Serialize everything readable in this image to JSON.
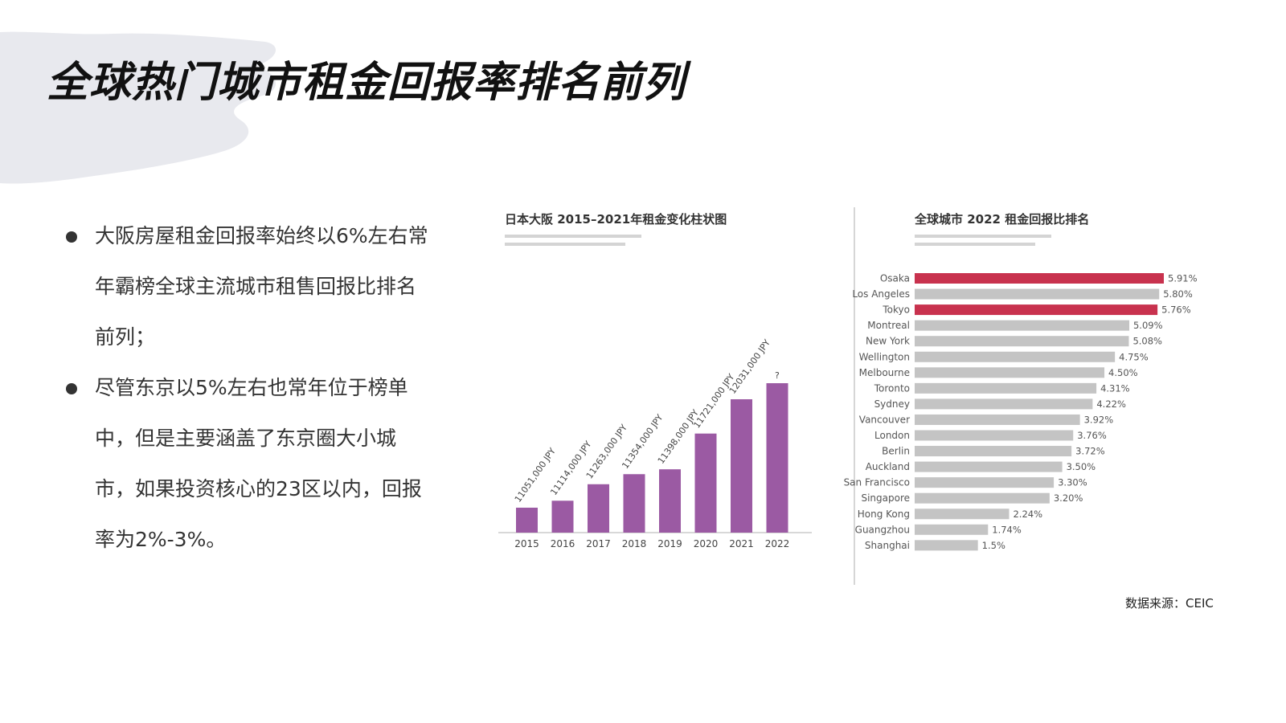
{
  "title": "全球热门城市租金回报率排名前列",
  "bullets": [
    "大阪房屋租金回报率始终以6%左右常年霸榜全球主流城市租售回报比排名前列；",
    "尽管东京以5%左右也常年位于榜单中，但是主要涵盖了东京圈大小城市，如果投资核心的23区以内，回报率为2%-3%。"
  ],
  "source_note": "数据来源：CEIC",
  "colors": {
    "purple_bar": "#9b5aa3",
    "highlight": "#c8324e",
    "gray_bar": "#c4c4c4",
    "brush": "#e8e9ee"
  },
  "chart_data": [
    {
      "type": "bar",
      "title": "日本大阪 2015–2021年租金变化柱状图",
      "categories": [
        "2015",
        "2016",
        "2017",
        "2018",
        "2019",
        "2020",
        "2021",
        "2022"
      ],
      "values": [
        11051000,
        11114000,
        11263000,
        11354000,
        11398000,
        11721000,
        12031000,
        null
      ],
      "labels": [
        "11051,000 JPY",
        "11114,000 JPY",
        "11263,000 JPY",
        "11354,000 JPY",
        "11398,000 JPY",
        "11721,000 JPY",
        "12031,000 JPY",
        "?"
      ],
      "bar_color": "#9b5aa3"
    },
    {
      "type": "bar",
      "orientation": "horizontal",
      "title": "全球城市 2022 租金回报比排名",
      "categories": [
        "Osaka",
        "Los Angeles",
        "Tokyo",
        "Montreal",
        "New York",
        "Wellington",
        "Melbourne",
        "Toronto",
        "Sydney",
        "Vancouver",
        "London",
        "Berlin",
        "Auckland",
        "San Francisco",
        "Singapore",
        "Hong Kong",
        "Guangzhou",
        "Shanghai"
      ],
      "values": [
        5.91,
        5.8,
        5.76,
        5.09,
        5.08,
        4.75,
        4.5,
        4.31,
        4.22,
        3.92,
        3.76,
        3.72,
        3.5,
        3.3,
        3.2,
        2.24,
        1.74,
        1.5
      ],
      "labels": [
        "5.91%",
        "5.80%",
        "5.76%",
        "5.09%",
        "5.08%",
        "4.75%",
        "4.50%",
        "4.31%",
        "4.22%",
        "3.92%",
        "3.76%",
        "3.72%",
        "3.50%",
        "3.30%",
        "3.20%",
        "2.24%",
        "1.74%",
        "1.5%"
      ],
      "highlighted": [
        "Osaka",
        "Tokyo"
      ],
      "highlight_color": "#c8324e",
      "bar_color": "#c4c4c4"
    }
  ]
}
